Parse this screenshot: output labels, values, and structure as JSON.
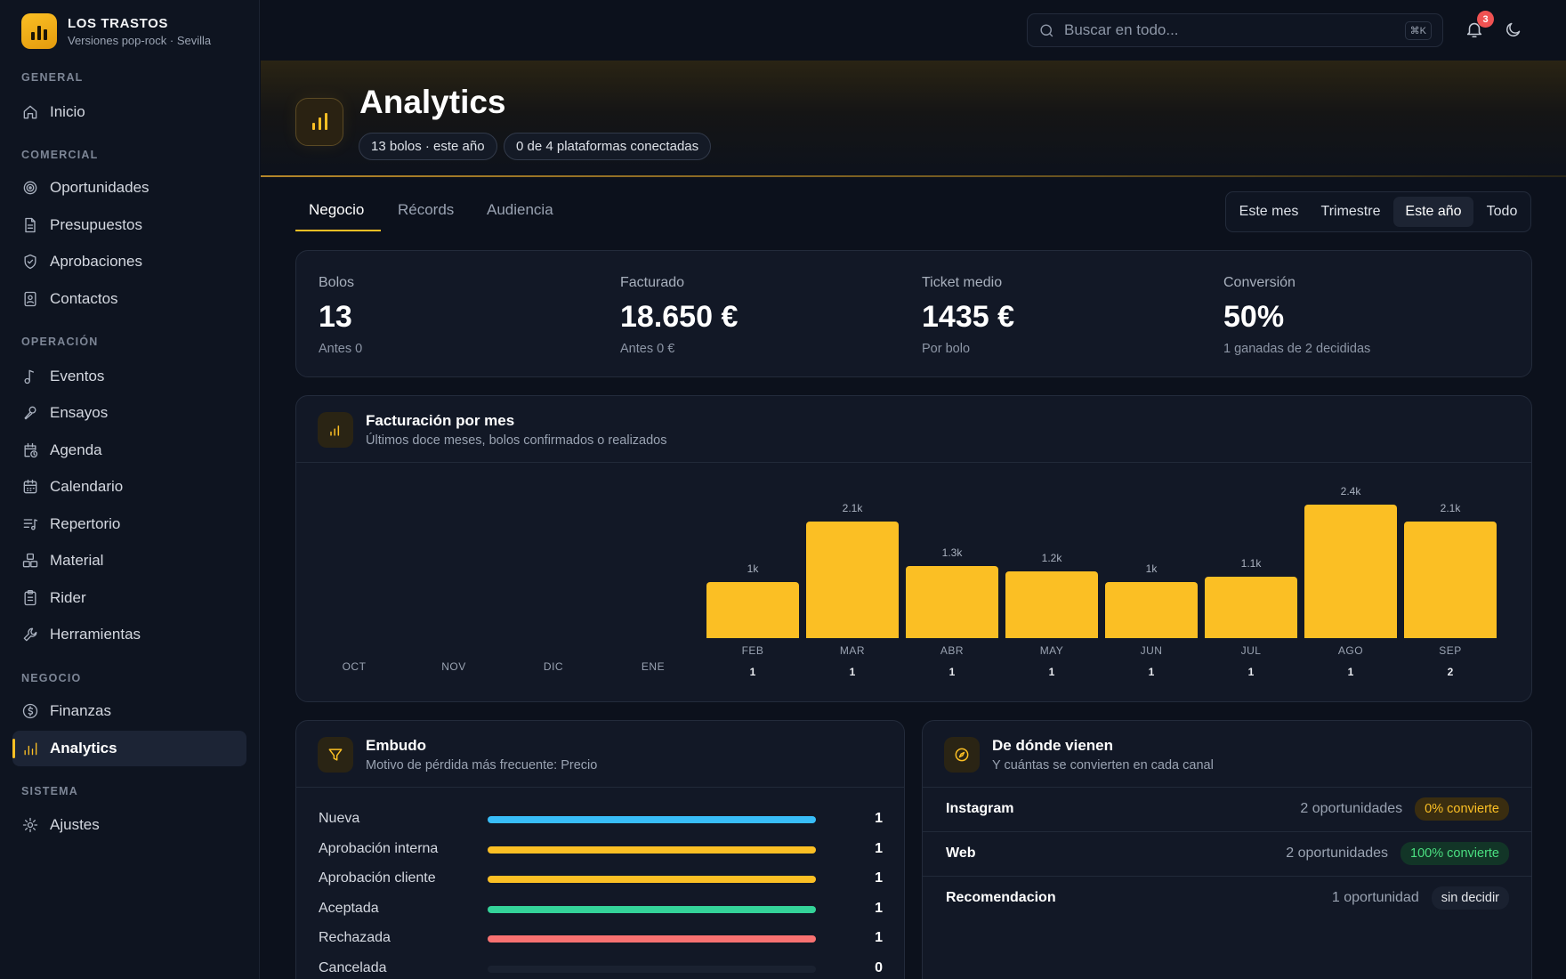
{
  "brand": {
    "name": "LOS TRASTOS",
    "subtitle": "Versiones pop-rock · Sevilla"
  },
  "sidebar": {
    "sections": [
      {
        "title": "GENERAL",
        "items": [
          {
            "label": "Inicio",
            "icon": "home-icon"
          }
        ]
      },
      {
        "title": "COMERCIAL",
        "items": [
          {
            "label": "Oportunidades",
            "icon": "target-icon"
          },
          {
            "label": "Presupuestos",
            "icon": "document-icon"
          },
          {
            "label": "Aprobaciones",
            "icon": "shield-check-icon"
          },
          {
            "label": "Contactos",
            "icon": "contact-card-icon"
          }
        ]
      },
      {
        "title": "OPERACIÓN",
        "items": [
          {
            "label": "Eventos",
            "icon": "music-note-icon"
          },
          {
            "label": "Ensayos",
            "icon": "microphone-icon"
          },
          {
            "label": "Agenda",
            "icon": "calendar-clock-icon"
          },
          {
            "label": "Calendario",
            "icon": "calendar-icon"
          },
          {
            "label": "Repertorio",
            "icon": "music-list-icon"
          },
          {
            "label": "Material",
            "icon": "boxes-icon"
          },
          {
            "label": "Rider",
            "icon": "clipboard-icon"
          },
          {
            "label": "Herramientas",
            "icon": "wrench-icon"
          }
        ]
      },
      {
        "title": "NEGOCIO",
        "items": [
          {
            "label": "Finanzas",
            "icon": "dollar-circle-icon"
          },
          {
            "label": "Analytics",
            "icon": "bar-chart-icon",
            "active": true
          }
        ]
      },
      {
        "title": "SISTEMA",
        "items": [
          {
            "label": "Ajustes",
            "icon": "gear-icon"
          }
        ]
      }
    ]
  },
  "topbar": {
    "search_placeholder": "Buscar en todo...",
    "shortcut": "⌘K",
    "notifications": "3"
  },
  "header": {
    "title": "Analytics",
    "pills": [
      "13 bolos · este año",
      "0 de 4 plataformas conectadas"
    ]
  },
  "tabs": [
    "Negocio",
    "Récords",
    "Audiencia"
  ],
  "active_tab": "Negocio",
  "ranges": [
    "Este mes",
    "Trimestre",
    "Este año",
    "Todo"
  ],
  "active_range": "Este año",
  "stats": [
    {
      "label": "Bolos",
      "value": "13",
      "sub": "Antes 0"
    },
    {
      "label": "Facturado",
      "value": "18.650 €",
      "sub": "Antes 0 €"
    },
    {
      "label": "Ticket medio",
      "value": "1435 €",
      "sub": "Por bolo"
    },
    {
      "label": "Conversión",
      "value": "50%",
      "sub": "1 ganadas de 2 decididas"
    }
  ],
  "revenue": {
    "title": "Facturación por mes",
    "subtitle": "Últimos doce meses, bolos confirmados o realizados"
  },
  "chart_data": {
    "type": "bar",
    "categories": [
      "OCT",
      "NOV",
      "DIC",
      "ENE",
      "FEB",
      "MAR",
      "ABR",
      "MAY",
      "JUN",
      "JUL",
      "AGO",
      "SEP"
    ],
    "values": [
      0,
      0,
      0,
      0,
      1000,
      2100,
      1300,
      1200,
      1000,
      1100,
      2400,
      2100
    ],
    "value_labels": [
      "",
      "",
      "",
      "",
      "1k",
      "2.1k",
      "1.3k",
      "1.2k",
      "1k",
      "1.1k",
      "2.4k",
      "2.1k"
    ],
    "counts": [
      "",
      "",
      "",
      "",
      "1",
      "1",
      "1",
      "1",
      "1",
      "1",
      "1",
      "2"
    ],
    "bar_color": "#fbbf24",
    "grid": false
  },
  "funnel": {
    "title": "Embudo",
    "subtitle": "Motivo de pérdida más frecuente: Precio",
    "rows": [
      {
        "label": "Nueva",
        "value": "1",
        "fraction": 1,
        "color": "#38bdf8"
      },
      {
        "label": "Aprobación interna",
        "value": "1",
        "fraction": 1,
        "color": "#fbbf24"
      },
      {
        "label": "Aprobación cliente",
        "value": "1",
        "fraction": 1,
        "color": "#fbbf24"
      },
      {
        "label": "Aceptada",
        "value": "1",
        "fraction": 1,
        "color": "#34d399"
      },
      {
        "label": "Rechazada",
        "value": "1",
        "fraction": 1,
        "color": "#f87171"
      },
      {
        "label": "Cancelada",
        "value": "0",
        "fraction": 0,
        "color": "#475569"
      }
    ]
  },
  "sources": {
    "title": "De dónde vienen",
    "subtitle": "Y cuántas se convierten en cada canal",
    "rows": [
      {
        "name": "Instagram",
        "opps": "2 oportunidades",
        "tag": "0% convierte",
        "tone": "orange"
      },
      {
        "name": "Web",
        "opps": "2 oportunidades",
        "tag": "100% convierte",
        "tone": "green"
      },
      {
        "name": "Recomendacion",
        "opps": "1 oportunidad",
        "tag": "sin decidir",
        "tone": "gray"
      }
    ]
  }
}
